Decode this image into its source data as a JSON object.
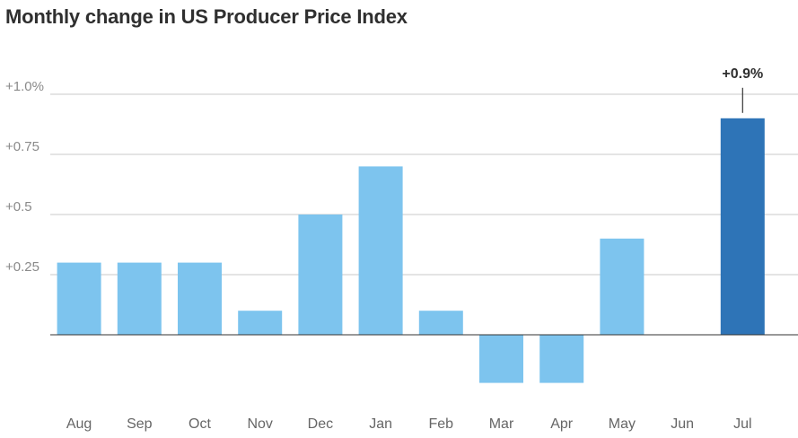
{
  "chart_data": {
    "type": "bar",
    "title": "Monthly change in US Producer Price Index",
    "xlabel": "",
    "ylabel": "",
    "categories": [
      "Aug",
      "Sep",
      "Oct",
      "Nov",
      "Dec",
      "Jan",
      "Feb",
      "Mar",
      "Apr",
      "May",
      "Jun",
      "Jul"
    ],
    "values": [
      0.3,
      0.3,
      0.3,
      0.1,
      0.5,
      0.7,
      0.1,
      -0.2,
      -0.2,
      0.4,
      0.0,
      0.9
    ],
    "ylim": [
      -0.3,
      1.0
    ],
    "yticks": [
      0.25,
      0.5,
      0.75,
      1.0
    ],
    "ytick_labels": [
      "+0.25",
      "+0.5",
      "+0.75",
      "+1.0%"
    ],
    "grid": true,
    "highlight": {
      "category": "Jul",
      "label": "+0.9%"
    },
    "colors": {
      "bar": "#7dc4ee",
      "highlight_bar": "#2e74b7",
      "gridline": "#c8c8c8",
      "baseline": "#333333"
    }
  }
}
